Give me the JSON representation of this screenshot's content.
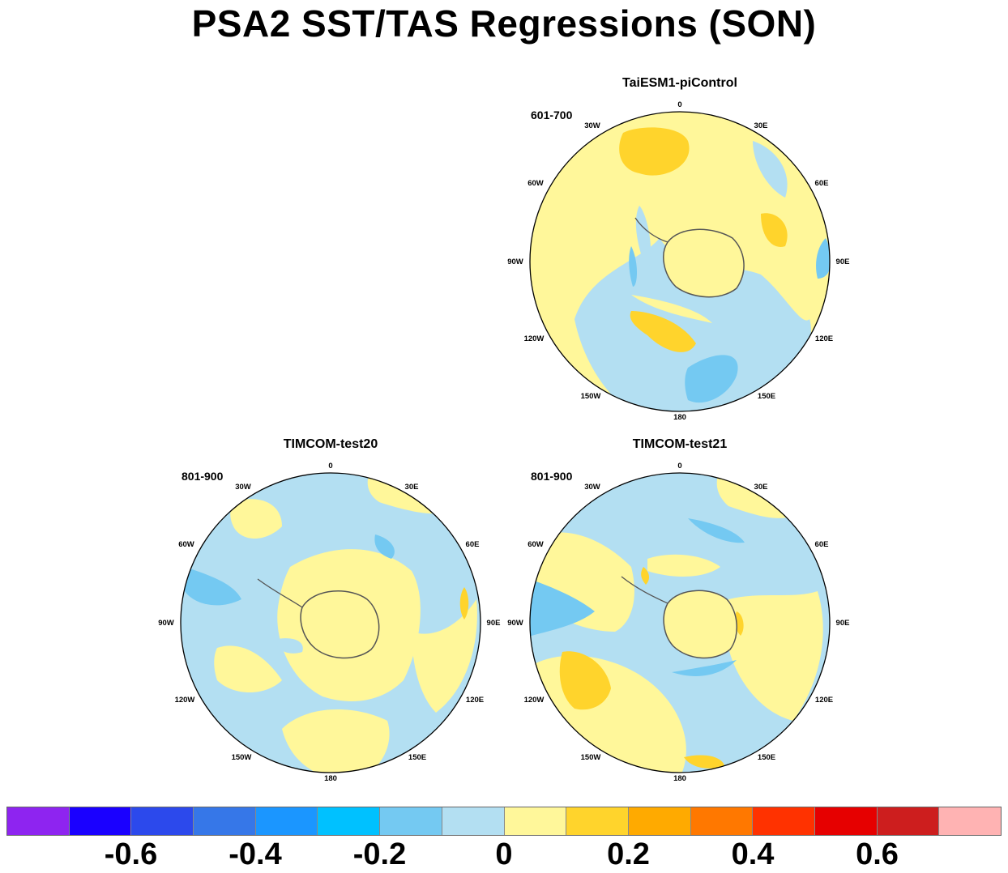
{
  "title": "PSA2 SST/TAS Regressions (SON)",
  "panels": [
    {
      "title": "TaiESM1-piControl",
      "years": "601-700"
    },
    {
      "title": "TIMCOM-test20",
      "years": "801-900"
    },
    {
      "title": "TIMCOM-test21",
      "years": "801-900"
    }
  ],
  "longitude_labels": [
    "0",
    "30E",
    "60E",
    "90E",
    "120E",
    "150E",
    "180",
    "150W",
    "120W",
    "90W",
    "60W",
    "30W"
  ],
  "colorbar": {
    "colors": [
      "#8e24f0",
      "#1a00ff",
      "#2c49ec",
      "#3677e8",
      "#1b96ff",
      "#00c1ff",
      "#74c9f2",
      "#b3dff2",
      "#fff79a",
      "#ffd42c",
      "#ffaa00",
      "#ff7800",
      "#ff3200",
      "#e60000",
      "#cd1e1e",
      "#ffb3b3"
    ],
    "tick_labels": [
      "-0.6",
      "-0.4",
      "-0.2",
      "0",
      "0.2",
      "0.4",
      "0.6"
    ]
  },
  "chart_data": {
    "type": "map",
    "projection": "south polar stereographic",
    "variable": "SST/TAS regression",
    "season": "SON",
    "levels": [
      -0.7,
      -0.6,
      -0.5,
      -0.4,
      -0.3,
      -0.2,
      -0.1,
      0,
      0.1,
      0.2,
      0.3,
      0.4,
      0.5,
      0.6,
      0.7
    ]
  }
}
